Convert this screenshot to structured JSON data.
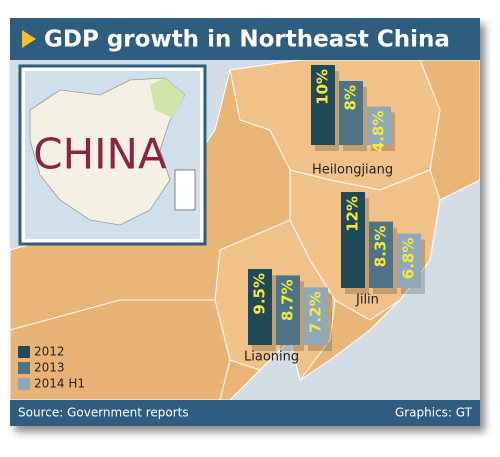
{
  "chart_data": {
    "type": "bar",
    "title": "GDP growth in Northeast China",
    "inset_label": "CHINA",
    "source": "Source: Government reports",
    "credit": "Graphics: GT",
    "categories": [
      "Heilongjiang",
      "Jilin",
      "Liaoning"
    ],
    "series": [
      {
        "name": "2012",
        "color": "#1e4a57",
        "values": [
          10,
          12,
          9.5
        ],
        "value_labels": [
          "10%",
          "12%",
          "9.5%"
        ]
      },
      {
        "name": "2013",
        "color": "#4e7387",
        "values": [
          8,
          8.3,
          8.7
        ],
        "value_labels": [
          "8%",
          "8.3%",
          "8.7%"
        ]
      },
      {
        "name": "2014 H1",
        "color": "#8fa8ba",
        "values": [
          4.8,
          6.8,
          7.2
        ],
        "value_labels": [
          "4.8%",
          "6.8%",
          "7.2%"
        ]
      }
    ]
  }
}
